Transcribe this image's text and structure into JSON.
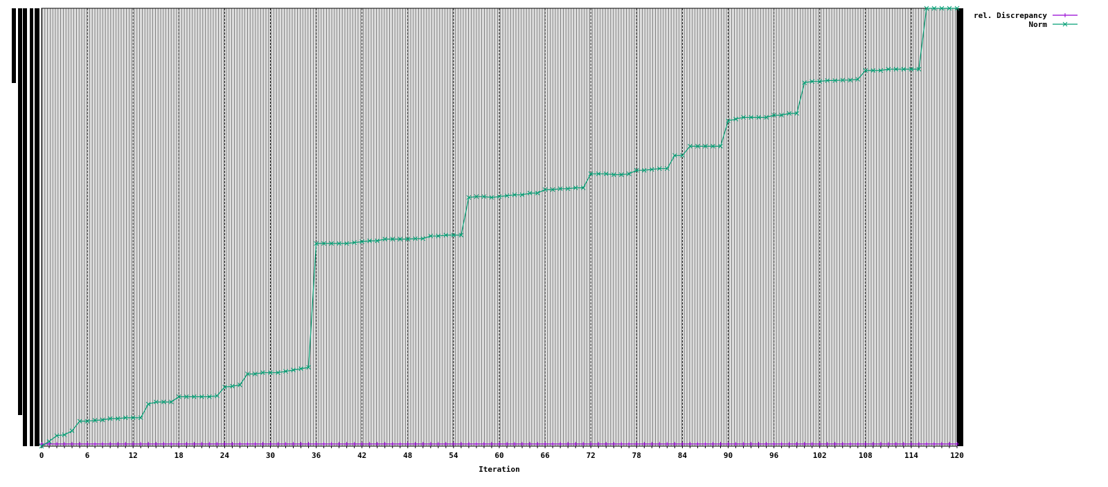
{
  "chart_data": {
    "type": "line",
    "xlabel": "Iteration",
    "ylabel": "",
    "title": "",
    "xlim": [
      0,
      120
    ],
    "ylim": [
      0,
      1
    ],
    "x_ticks": [
      "0",
      "6",
      "12",
      "18",
      "24",
      "30",
      "36",
      "42",
      "48",
      "54",
      "60",
      "66",
      "72",
      "78",
      "84",
      "90",
      "96",
      "102",
      "108",
      "114",
      "120"
    ],
    "grid": true,
    "legend_position": "top-right",
    "series": [
      {
        "name": "rel. Discrepancy",
        "color": "#9400d3",
        "marker": "plus",
        "x": [
          0,
          1,
          2,
          3,
          4,
          5,
          6,
          7,
          8,
          9,
          10,
          11,
          12,
          13,
          14,
          15,
          16,
          17,
          18,
          19,
          20,
          21,
          22,
          23,
          24,
          25,
          26,
          27,
          28,
          29,
          30,
          31,
          32,
          33,
          34,
          35,
          36,
          37,
          38,
          39,
          40,
          41,
          42,
          43,
          44,
          45,
          46,
          47,
          48,
          49,
          50,
          51,
          52,
          53,
          54,
          55,
          56,
          57,
          58,
          59,
          60,
          61,
          62,
          63,
          64,
          65,
          66,
          67,
          68,
          69,
          70,
          71,
          72,
          73,
          74,
          75,
          76,
          77,
          78,
          79,
          80,
          81,
          82,
          83,
          84,
          85,
          86,
          87,
          88,
          89,
          90,
          91,
          92,
          93,
          94,
          95,
          96,
          97,
          98,
          99,
          100,
          101,
          102,
          103,
          104,
          105,
          106,
          107,
          108,
          109,
          110,
          111,
          112,
          113,
          114,
          115,
          116,
          117,
          118,
          119,
          120
        ],
        "y": [
          0.005,
          0.005,
          0.005,
          0.005,
          0.005,
          0.005,
          0.005,
          0.005,
          0.005,
          0.005,
          0.005,
          0.005,
          0.005,
          0.005,
          0.005,
          0.005,
          0.005,
          0.005,
          0.005,
          0.005,
          0.005,
          0.005,
          0.005,
          0.005,
          0.005,
          0.005,
          0.005,
          0.005,
          0.005,
          0.005,
          0.005,
          0.005,
          0.005,
          0.005,
          0.005,
          0.005,
          0.005,
          0.005,
          0.005,
          0.005,
          0.005,
          0.005,
          0.005,
          0.005,
          0.005,
          0.005,
          0.005,
          0.005,
          0.005,
          0.005,
          0.005,
          0.005,
          0.005,
          0.005,
          0.005,
          0.005,
          0.005,
          0.005,
          0.005,
          0.005,
          0.005,
          0.005,
          0.005,
          0.005,
          0.005,
          0.005,
          0.005,
          0.005,
          0.005,
          0.005,
          0.005,
          0.005,
          0.005,
          0.005,
          0.005,
          0.005,
          0.005,
          0.005,
          0.005,
          0.005,
          0.005,
          0.005,
          0.005,
          0.005,
          0.005,
          0.005,
          0.005,
          0.005,
          0.005,
          0.005,
          0.005,
          0.005,
          0.005,
          0.005,
          0.005,
          0.005,
          0.005,
          0.005,
          0.005,
          0.005,
          0.005,
          0.005,
          0.005,
          0.005,
          0.005,
          0.005,
          0.005,
          0.005,
          0.005,
          0.005,
          0.005,
          0.005,
          0.005,
          0.005,
          0.005,
          0.005,
          0.005,
          0.005,
          0.005,
          0.005,
          0.005
        ]
      },
      {
        "name": "Norm",
        "color": "#009e73",
        "marker": "cross",
        "x": [
          0,
          1,
          2,
          3,
          4,
          5,
          6,
          7,
          8,
          9,
          10,
          11,
          12,
          13,
          14,
          15,
          16,
          17,
          18,
          19,
          20,
          21,
          22,
          23,
          24,
          25,
          26,
          27,
          28,
          29,
          30,
          31,
          32,
          33,
          34,
          35,
          36,
          37,
          38,
          39,
          40,
          41,
          42,
          43,
          44,
          45,
          46,
          47,
          48,
          49,
          50,
          51,
          52,
          53,
          54,
          55,
          56,
          57,
          58,
          59,
          60,
          61,
          62,
          63,
          64,
          65,
          66,
          67,
          68,
          69,
          70,
          71,
          72,
          73,
          74,
          75,
          76,
          77,
          78,
          79,
          80,
          81,
          82,
          83,
          84,
          85,
          86,
          87,
          88,
          89,
          90,
          91,
          92,
          93,
          94,
          95,
          96,
          97,
          98,
          99,
          100,
          101,
          102,
          103,
          104,
          105,
          106,
          107,
          108,
          109,
          110,
          111,
          112,
          113,
          114,
          115,
          116,
          117,
          118,
          119,
          120
        ],
        "y": [
          0.0,
          0.011,
          0.024,
          0.026,
          0.035,
          0.057,
          0.057,
          0.059,
          0.06,
          0.063,
          0.063,
          0.065,
          0.065,
          0.065,
          0.096,
          0.101,
          0.101,
          0.101,
          0.113,
          0.113,
          0.113,
          0.113,
          0.113,
          0.115,
          0.135,
          0.137,
          0.14,
          0.165,
          0.165,
          0.168,
          0.168,
          0.168,
          0.171,
          0.174,
          0.177,
          0.18,
          0.463,
          0.463,
          0.463,
          0.463,
          0.463,
          0.465,
          0.467,
          0.469,
          0.469,
          0.473,
          0.473,
          0.473,
          0.473,
          0.474,
          0.474,
          0.48,
          0.48,
          0.482,
          0.482,
          0.482,
          0.568,
          0.57,
          0.57,
          0.568,
          0.57,
          0.572,
          0.574,
          0.574,
          0.578,
          0.578,
          0.586,
          0.586,
          0.588,
          0.588,
          0.59,
          0.59,
          0.622,
          0.622,
          0.622,
          0.62,
          0.62,
          0.622,
          0.63,
          0.63,
          0.632,
          0.634,
          0.634,
          0.664,
          0.664,
          0.685,
          0.685,
          0.685,
          0.685,
          0.685,
          0.743,
          0.747,
          0.751,
          0.751,
          0.751,
          0.751,
          0.756,
          0.756,
          0.76,
          0.76,
          0.83,
          0.833,
          0.833,
          0.835,
          0.835,
          0.836,
          0.836,
          0.838,
          0.858,
          0.858,
          0.858,
          0.861,
          0.861,
          0.861,
          0.861,
          0.861,
          1.0,
          1.0,
          1.0,
          1.0,
          1.0
        ]
      }
    ]
  }
}
